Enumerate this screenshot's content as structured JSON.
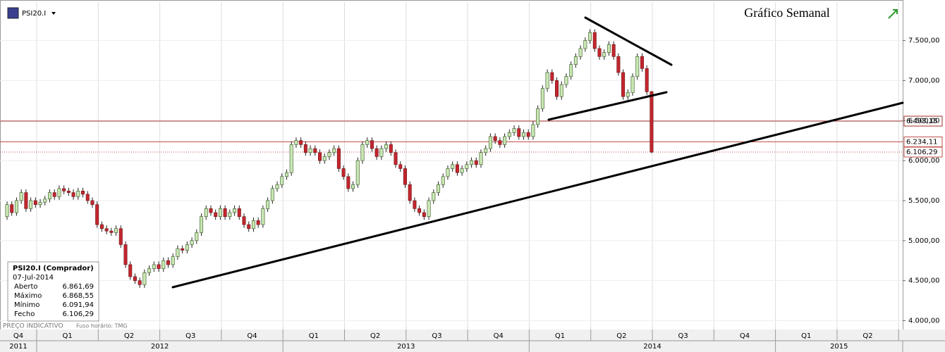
{
  "chart_data": {
    "type": "candlestick",
    "title": "Gráfico Semanal",
    "symbol": "PSI20.I",
    "up_color": "#c9e7b3",
    "down_color": "#c4262e",
    "ylim": [
      3890,
      7980
    ],
    "yticks": [
      {
        "value": 4000,
        "label": "4.000,00"
      },
      {
        "value": 4500,
        "label": "4.500,00"
      },
      {
        "value": 5000,
        "label": "5.000,00"
      },
      {
        "value": 5500,
        "label": "5.500,00"
      },
      {
        "value": 6000,
        "label": "6.000,00"
      },
      {
        "value": 6500,
        "label": "6.500,00"
      },
      {
        "value": 7000,
        "label": "7.000,00"
      },
      {
        "value": 7500,
        "label": "7.500,00"
      }
    ],
    "grid": true,
    "quarters": [
      "Q4",
      "Q1",
      "Q2",
      "Q3",
      "Q4",
      "Q1",
      "Q2",
      "Q3",
      "Q4",
      "Q1",
      "Q2",
      "Q3",
      "Q4",
      "Q1",
      "Q2"
    ],
    "years": [
      "2011",
      "2012",
      "2013",
      "2014",
      "2015"
    ],
    "hlines": [
      {
        "value": 6493.15,
        "label": "6.493,15",
        "color": "#a0302a",
        "style": "solid"
      },
      {
        "value": 6234.11,
        "label": "6.234,11",
        "color": "#c0504a",
        "style": "solid"
      },
      {
        "value": 6106.29,
        "label": "6.106,29",
        "color": "#c0504a",
        "style": "dotted"
      }
    ],
    "ohlc": [
      [
        5300,
        5490,
        5260,
        5450
      ],
      [
        5450,
        5490,
        5310,
        5350
      ],
      [
        5350,
        5540,
        5310,
        5500
      ],
      [
        5500,
        5640,
        5460,
        5600
      ],
      [
        5600,
        5640,
        5360,
        5400
      ],
      [
        5400,
        5540,
        5360,
        5500
      ],
      [
        5500,
        5540,
        5410,
        5450
      ],
      [
        5450,
        5520,
        5410,
        5480
      ],
      [
        5480,
        5560,
        5440,
        5520
      ],
      [
        5520,
        5640,
        5480,
        5600
      ],
      [
        5600,
        5640,
        5510,
        5550
      ],
      [
        5550,
        5690,
        5510,
        5650
      ],
      [
        5650,
        5690,
        5580,
        5620
      ],
      [
        5620,
        5660,
        5560,
        5600
      ],
      [
        5600,
        5640,
        5510,
        5550
      ],
      [
        5550,
        5660,
        5510,
        5620
      ],
      [
        5620,
        5660,
        5540,
        5580
      ],
      [
        5580,
        5620,
        5460,
        5500
      ],
      [
        5500,
        5540,
        5410,
        5450
      ],
      [
        5450,
        5490,
        5160,
        5200
      ],
      [
        5200,
        5240,
        5110,
        5150
      ],
      [
        5150,
        5190,
        5080,
        5120
      ],
      [
        5120,
        5160,
        5060,
        5100
      ],
      [
        5100,
        5190,
        5060,
        5150
      ],
      [
        5150,
        5190,
        4910,
        4950
      ],
      [
        4950,
        4990,
        4660,
        4700
      ],
      [
        4700,
        4740,
        4510,
        4550
      ],
      [
        4550,
        4590,
        4460,
        4500
      ],
      [
        4500,
        4540,
        4410,
        4450
      ],
      [
        4450,
        4640,
        4410,
        4600
      ],
      [
        4600,
        4690,
        4560,
        4650
      ],
      [
        4650,
        4740,
        4610,
        4700
      ],
      [
        4700,
        4740,
        4610,
        4650
      ],
      [
        4650,
        4790,
        4610,
        4750
      ],
      [
        4750,
        4790,
        4660,
        4700
      ],
      [
        4700,
        4840,
        4660,
        4800
      ],
      [
        4800,
        4940,
        4760,
        4900
      ],
      [
        4900,
        4940,
        4840,
        4880
      ],
      [
        4880,
        4990,
        4840,
        4950
      ],
      [
        4950,
        5040,
        4910,
        5000
      ],
      [
        5000,
        5140,
        4960,
        5100
      ],
      [
        5100,
        5340,
        5060,
        5300
      ],
      [
        5300,
        5440,
        5260,
        5400
      ],
      [
        5400,
        5440,
        5310,
        5350
      ],
      [
        5350,
        5390,
        5260,
        5300
      ],
      [
        5300,
        5440,
        5260,
        5400
      ],
      [
        5400,
        5440,
        5260,
        5300
      ],
      [
        5300,
        5390,
        5260,
        5350
      ],
      [
        5350,
        5440,
        5310,
        5400
      ],
      [
        5400,
        5440,
        5260,
        5300
      ],
      [
        5300,
        5340,
        5160,
        5200
      ],
      [
        5200,
        5240,
        5110,
        5150
      ],
      [
        5150,
        5290,
        5110,
        5250
      ],
      [
        5250,
        5290,
        5160,
        5200
      ],
      [
        5200,
        5440,
        5160,
        5400
      ],
      [
        5400,
        5540,
        5360,
        5500
      ],
      [
        5500,
        5690,
        5460,
        5650
      ],
      [
        5650,
        5740,
        5610,
        5700
      ],
      [
        5700,
        5840,
        5660,
        5800
      ],
      [
        5800,
        5890,
        5760,
        5850
      ],
      [
        5850,
        6240,
        5810,
        6200
      ],
      [
        6200,
        6290,
        6160,
        6250
      ],
      [
        6250,
        6290,
        6160,
        6200
      ],
      [
        6200,
        6240,
        6060,
        6100
      ],
      [
        6100,
        6190,
        6060,
        6150
      ],
      [
        6150,
        6190,
        6060,
        6100
      ],
      [
        6100,
        6140,
        5960,
        6000
      ],
      [
        6000,
        6090,
        5960,
        6050
      ],
      [
        6050,
        6140,
        6010,
        6100
      ],
      [
        6100,
        6190,
        6060,
        6150
      ],
      [
        6150,
        6190,
        5860,
        5900
      ],
      [
        5900,
        5940,
        5760,
        5800
      ],
      [
        5800,
        5840,
        5610,
        5650
      ],
      [
        5650,
        5740,
        5610,
        5700
      ],
      [
        5700,
        6040,
        5660,
        6000
      ],
      [
        6000,
        6240,
        5960,
        6200
      ],
      [
        6200,
        6290,
        6160,
        6250
      ],
      [
        6250,
        6290,
        6110,
        6150
      ],
      [
        6150,
        6190,
        6010,
        6050
      ],
      [
        6050,
        6190,
        6010,
        6150
      ],
      [
        6150,
        6240,
        6110,
        6200
      ],
      [
        6200,
        6240,
        6060,
        6100
      ],
      [
        6100,
        6140,
        5910,
        5950
      ],
      [
        5950,
        5990,
        5860,
        5900
      ],
      [
        5900,
        5940,
        5660,
        5700
      ],
      [
        5700,
        5740,
        5460,
        5500
      ],
      [
        5500,
        5540,
        5360,
        5400
      ],
      [
        5400,
        5440,
        5310,
        5350
      ],
      [
        5350,
        5390,
        5260,
        5300
      ],
      [
        5300,
        5540,
        5260,
        5500
      ],
      [
        5500,
        5640,
        5460,
        5600
      ],
      [
        5600,
        5740,
        5560,
        5700
      ],
      [
        5700,
        5840,
        5660,
        5800
      ],
      [
        5800,
        5940,
        5760,
        5900
      ],
      [
        5900,
        5990,
        5860,
        5950
      ],
      [
        5950,
        5990,
        5810,
        5850
      ],
      [
        5850,
        5940,
        5810,
        5900
      ],
      [
        5900,
        5990,
        5860,
        5950
      ],
      [
        5950,
        6040,
        5910,
        6000
      ],
      [
        6000,
        6040,
        5910,
        5950
      ],
      [
        5950,
        6140,
        5910,
        6100
      ],
      [
        6100,
        6190,
        6060,
        6150
      ],
      [
        6150,
        6340,
        6110,
        6300
      ],
      [
        6300,
        6340,
        6210,
        6250
      ],
      [
        6250,
        6290,
        6160,
        6200
      ],
      [
        6200,
        6340,
        6160,
        6300
      ],
      [
        6300,
        6390,
        6260,
        6350
      ],
      [
        6350,
        6440,
        6310,
        6400
      ],
      [
        6400,
        6440,
        6260,
        6300
      ],
      [
        6300,
        6390,
        6260,
        6350
      ],
      [
        6350,
        6390,
        6260,
        6300
      ],
      [
        6300,
        6490,
        6260,
        6450
      ],
      [
        6450,
        6690,
        6410,
        6650
      ],
      [
        6650,
        6940,
        6610,
        6900
      ],
      [
        6900,
        7140,
        6860,
        7100
      ],
      [
        7100,
        7140,
        6960,
        7000
      ],
      [
        7000,
        7040,
        6760,
        6800
      ],
      [
        6800,
        6990,
        6760,
        6950
      ],
      [
        6950,
        7090,
        6910,
        7050
      ],
      [
        7050,
        7240,
        7010,
        7200
      ],
      [
        7200,
        7340,
        7160,
        7300
      ],
      [
        7300,
        7440,
        7260,
        7400
      ],
      [
        7400,
        7540,
        7360,
        7500
      ],
      [
        7500,
        7640,
        7460,
        7600
      ],
      [
        7600,
        7640,
        7360,
        7400
      ],
      [
        7400,
        7440,
        7260,
        7300
      ],
      [
        7300,
        7390,
        7260,
        7350
      ],
      [
        7350,
        7490,
        7310,
        7450
      ],
      [
        7450,
        7490,
        7260,
        7300
      ],
      [
        7300,
        7340,
        7060,
        7100
      ],
      [
        7100,
        7140,
        6760,
        6800
      ],
      [
        6800,
        6890,
        6760,
        6850
      ],
      [
        6850,
        7090,
        6810,
        7050
      ],
      [
        7050,
        7340,
        7010,
        7300
      ],
      [
        7300,
        7340,
        7110,
        7150
      ],
      [
        7150,
        7190,
        6820,
        6860
      ],
      [
        6861.69,
        6868.55,
        6091.94,
        6106.29
      ]
    ],
    "info_box": {
      "title": "PSI20.I (Comprador)",
      "date": "07-Jul-2014",
      "rows": [
        [
          "Aberto",
          "6.861,69"
        ],
        [
          "Máximo",
          "6.868,55"
        ],
        [
          "Mínimo",
          "6.091,94"
        ],
        [
          "Fecho",
          "6.106,29"
        ]
      ]
    },
    "footer": [
      "PREÇO INDICATIVO",
      "Fuso horário: TMG"
    ]
  }
}
